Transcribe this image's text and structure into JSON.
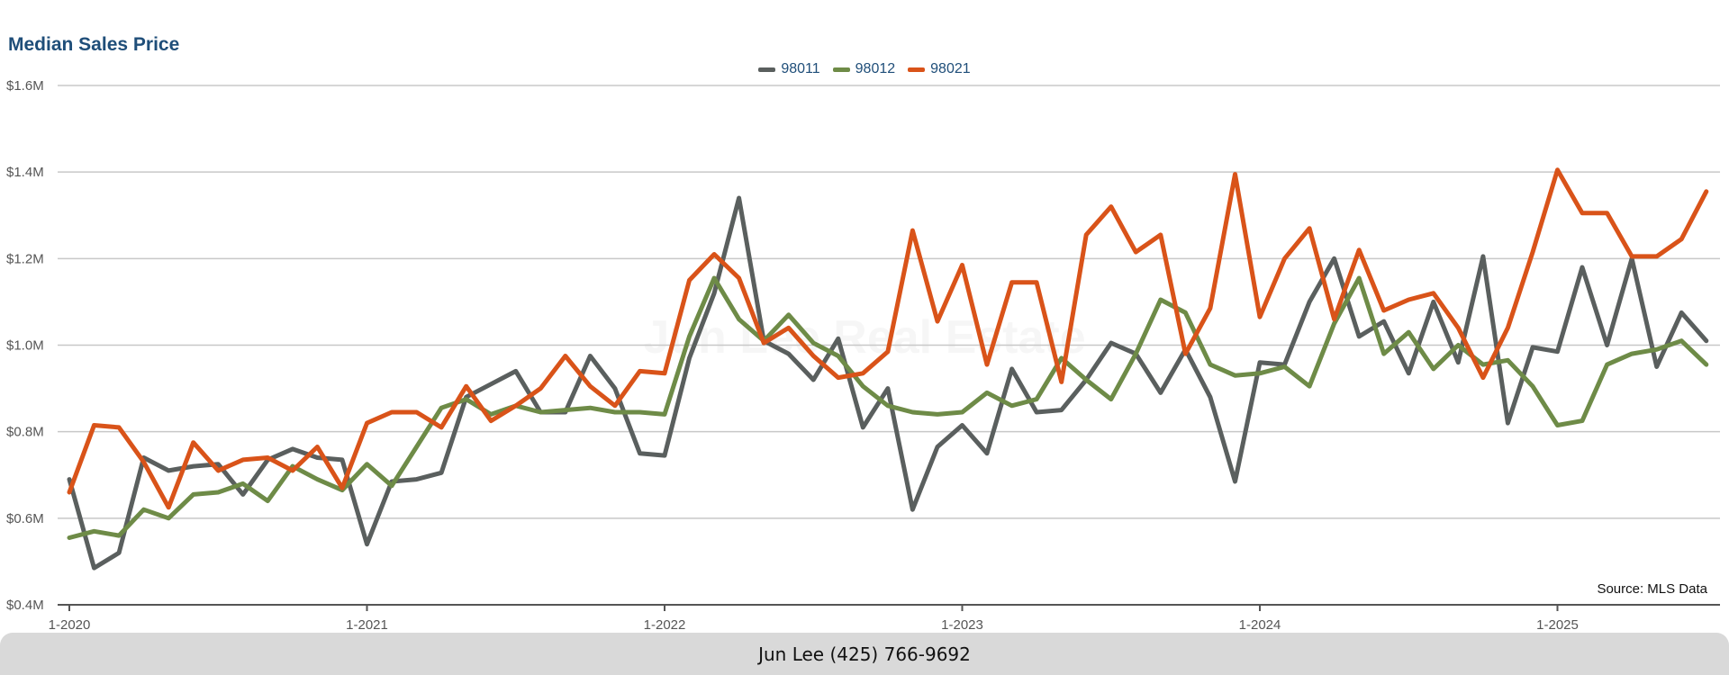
{
  "footer": {
    "contact": "Jun Lee (425) 766-9692"
  },
  "watermark": "Jun Lee Real Estate",
  "chart_data": {
    "type": "line",
    "title": "Median Sales Price",
    "source_note": "Source: MLS Data",
    "xlabel": "",
    "ylabel": "",
    "ylim": [
      0.4,
      1.6
    ],
    "y_unit": "$M",
    "y_ticks": [
      {
        "value": 0.4,
        "label": "$0.4M"
      },
      {
        "value": 0.6,
        "label": "$0.6M"
      },
      {
        "value": 0.8,
        "label": "$0.8M"
      },
      {
        "value": 1.0,
        "label": "$1.0M"
      },
      {
        "value": 1.2,
        "label": "$1.2M"
      },
      {
        "value": 1.4,
        "label": "$1.4M"
      },
      {
        "value": 1.6,
        "label": "$1.6M"
      }
    ],
    "x_ticks": [
      "1-2020",
      "1-2021",
      "1-2022",
      "1-2023",
      "1-2024",
      "1-2025"
    ],
    "x_start": "1-2020",
    "x_end": "7-2025",
    "grid": true,
    "legend_position": "top-center",
    "series": [
      {
        "name": "98011",
        "color": "#5a5f5e",
        "values": [
          0.69,
          0.485,
          0.52,
          0.74,
          0.71,
          0.72,
          0.725,
          0.655,
          0.735,
          0.76,
          0.74,
          0.735,
          0.54,
          0.685,
          0.69,
          0.705,
          0.88,
          0.91,
          0.94,
          0.845,
          0.845,
          0.975,
          0.9,
          0.75,
          0.745,
          0.97,
          1.12,
          1.34,
          1.01,
          0.98,
          0.92,
          1.015,
          0.81,
          0.9,
          0.62,
          0.765,
          0.815,
          0.75,
          0.945,
          0.845,
          0.85,
          0.92,
          1.005,
          0.98,
          0.89,
          0.99,
          0.88,
          0.685,
          0.96,
          0.955,
          1.1,
          1.2,
          1.02,
          1.055,
          0.935,
          1.1,
          0.96,
          1.205,
          0.82,
          0.995,
          0.985,
          1.18,
          1.0,
          1.2,
          0.95,
          1.075,
          1.01
        ]
      },
      {
        "name": "98012",
        "color": "#6e8b47",
        "values": [
          0.555,
          0.57,
          0.56,
          0.62,
          0.6,
          0.655,
          0.66,
          0.68,
          0.64,
          0.72,
          0.69,
          0.665,
          0.725,
          0.675,
          0.765,
          0.855,
          0.875,
          0.84,
          0.86,
          0.845,
          0.85,
          0.855,
          0.845,
          0.845,
          0.84,
          1.02,
          1.155,
          1.06,
          1.01,
          1.07,
          1.005,
          0.975,
          0.905,
          0.86,
          0.845,
          0.84,
          0.845,
          0.89,
          0.86,
          0.875,
          0.97,
          0.92,
          0.875,
          0.98,
          1.105,
          1.075,
          0.955,
          0.93,
          0.935,
          0.95,
          0.905,
          1.05,
          1.155,
          0.98,
          1.03,
          0.945,
          1.0,
          0.955,
          0.965,
          0.905,
          0.815,
          0.825,
          0.955,
          0.98,
          0.99,
          1.01,
          0.955
        ]
      },
      {
        "name": "98021",
        "color": "#d95319",
        "values": [
          0.66,
          0.815,
          0.81,
          0.73,
          0.625,
          0.775,
          0.71,
          0.735,
          0.74,
          0.71,
          0.765,
          0.67,
          0.82,
          0.845,
          0.845,
          0.81,
          0.905,
          0.825,
          0.86,
          0.9,
          0.975,
          0.905,
          0.86,
          0.94,
          0.935,
          1.15,
          1.21,
          1.155,
          1.005,
          1.04,
          0.975,
          0.925,
          0.935,
          0.985,
          1.265,
          1.055,
          1.185,
          0.955,
          1.145,
          1.145,
          0.915,
          1.255,
          1.32,
          1.215,
          1.255,
          0.98,
          1.085,
          1.395,
          1.065,
          1.2,
          1.27,
          1.06,
          1.22,
          1.08,
          1.105,
          1.12,
          1.04,
          0.925,
          1.04,
          1.215,
          1.405,
          1.305,
          1.305,
          1.205,
          1.205,
          1.245,
          1.355
        ]
      }
    ]
  }
}
